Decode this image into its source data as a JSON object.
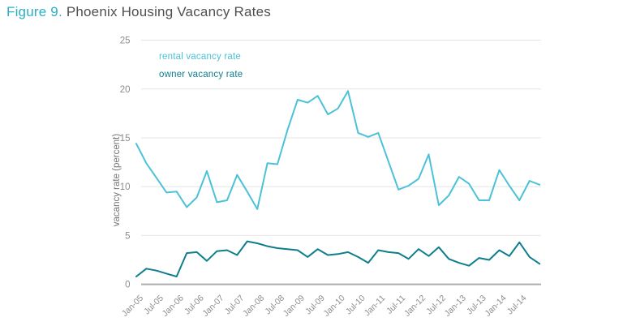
{
  "header": {
    "figure_label": "Figure 9.",
    "title_rest": "Phoenix Housing Vacancy Rates"
  },
  "chart_data": {
    "type": "line",
    "title": "Figure 9. Phoenix Housing Vacancy Rates",
    "ylabel": "vacancy rate (percent)",
    "xlabel": "",
    "ylim": [
      0,
      25
    ],
    "yticks": [
      0,
      5,
      10,
      15,
      20,
      25
    ],
    "grid": "horizontal",
    "legend_position": "inside-top-left",
    "x": [
      "Jan-05",
      "Apr-05",
      "Jul-05",
      "Oct-05",
      "Jan-06",
      "Apr-06",
      "Jul-06",
      "Oct-06",
      "Jan-07",
      "Apr-07",
      "Jul-07",
      "Oct-07",
      "Jan-08",
      "Apr-08",
      "Jul-08",
      "Oct-08",
      "Jan-09",
      "Apr-09",
      "Jul-09",
      "Oct-09",
      "Jan-10",
      "Apr-10",
      "Jul-10",
      "Oct-10",
      "Jan-11",
      "Apr-11",
      "Jul-11",
      "Oct-11",
      "Jan-12",
      "Apr-12",
      "Jul-12",
      "Oct-12",
      "Jan-13",
      "Apr-13",
      "Jul-13",
      "Oct-13",
      "Jan-14",
      "Apr-14",
      "Jul-14",
      "Oct-14",
      "Jan-15"
    ],
    "x_tick_labels": [
      "Jan-05",
      "Jul-05",
      "Jan-06",
      "Jul-06",
      "Jan-07",
      "Jul-07",
      "Jan-08",
      "Jul-08",
      "Jan-09",
      "Jul-09",
      "Jan-10",
      "Jul-10",
      "Jan-11",
      "Jul-11",
      "Jan-12",
      "Jul-12",
      "Jan-13",
      "Jul-13",
      "Jan-14",
      "Jul-14"
    ],
    "x_tick_every": 2,
    "series": [
      {
        "name": "rental vacancy rate",
        "color": "#4BC2D7",
        "values": [
          14.4,
          12.4,
          10.9,
          9.4,
          9.5,
          7.9,
          8.9,
          11.6,
          8.4,
          8.6,
          11.2,
          9.5,
          7.7,
          12.4,
          12.3,
          15.8,
          18.9,
          18.6,
          19.3,
          17.4,
          18.0,
          19.8,
          15.5,
          15.1,
          15.5,
          12.6,
          9.7,
          10.1,
          10.8,
          13.3,
          8.1,
          9.1,
          11.0,
          10.3,
          8.6,
          8.6,
          11.7,
          10.1,
          8.6,
          10.6,
          10.2
        ]
      },
      {
        "name": "owner vacancy rate",
        "color": "#0E7E8D",
        "values": [
          0.8,
          1.6,
          1.4,
          1.1,
          0.8,
          3.2,
          3.3,
          2.4,
          3.4,
          3.5,
          3.0,
          4.4,
          4.2,
          3.9,
          3.7,
          3.6,
          3.5,
          2.8,
          3.6,
          3.0,
          3.1,
          3.3,
          2.8,
          2.2,
          3.5,
          3.3,
          3.2,
          2.6,
          3.6,
          2.9,
          3.8,
          2.6,
          2.2,
          1.9,
          2.7,
          2.5,
          3.5,
          2.9,
          4.3,
          2.8,
          2.1
        ]
      }
    ],
    "colors": {
      "figure_label": "#29AFC4",
      "title_text": "#4E4F51",
      "tick_label": "#8A8C8E",
      "axis_title": "#717375",
      "gridline": "#E4E4E4",
      "zero_axis": "#ABADAF"
    }
  }
}
